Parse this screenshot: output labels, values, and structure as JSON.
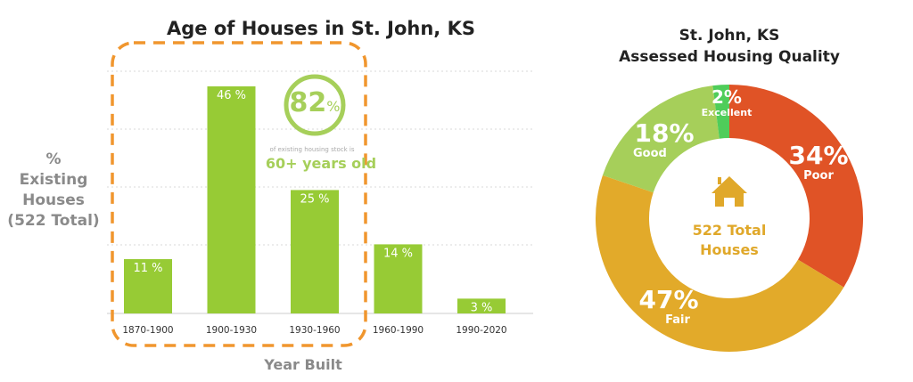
{
  "chart_data": [
    {
      "type": "bar",
      "title": "Age of Houses in St. John, KS",
      "xlabel": "Year Built",
      "ylabel": [
        "%",
        "Existing",
        "Houses",
        "(522 Total)"
      ],
      "categories": [
        "1870-1900",
        "1900-1930",
        "1930-1960",
        "1960-1990",
        "1990-2020"
      ],
      "values": [
        11,
        46,
        25,
        14,
        3
      ],
      "data_labels": [
        "11 %",
        "46 %",
        "25 %",
        "14 %",
        "3 %"
      ],
      "ylim": [
        0,
        49
      ],
      "grid": true,
      "bar_color": "#97cb35",
      "highlight": {
        "categories": [
          "1870-1900",
          "1900-1930",
          "1930-1960"
        ],
        "color": "#f0962e",
        "callout_value": "82",
        "callout_unit": "%",
        "callout_note": "of existing housing stock is",
        "callout_text": "60+ years old",
        "callout_color": "#a6cf5a"
      }
    },
    {
      "type": "pie",
      "donut": true,
      "title": [
        "St. John, KS",
        "Assessed Housing Quality"
      ],
      "center_icon": "house-icon",
      "center_text": [
        "522 Total",
        "Houses"
      ],
      "center_color": "#e0a82a",
      "slices": [
        {
          "name": "Poor",
          "value": 34,
          "label": "34%",
          "color": "#e05326"
        },
        {
          "name": "Fair",
          "value": 47,
          "label": "47%",
          "color": "#e2aa2a"
        },
        {
          "name": "Good",
          "value": 18,
          "label": "18%",
          "color": "#a6cf5a"
        },
        {
          "name": "Excellent",
          "value": 2,
          "label": "2%",
          "color": "#4fcd5a"
        }
      ]
    }
  ]
}
